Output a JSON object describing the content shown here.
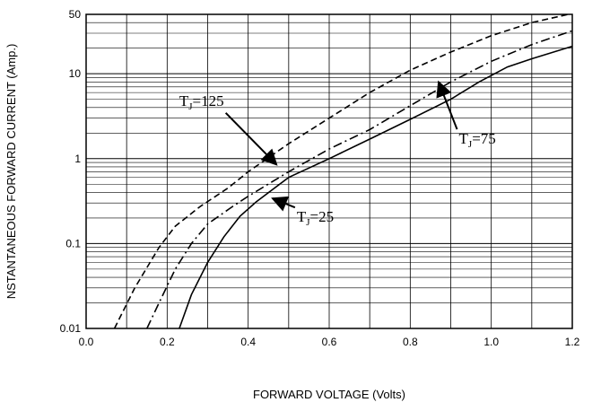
{
  "chart_data": {
    "type": "line",
    "xlabel": "FORWARD VOLTAGE (Volts)",
    "ylabel": "NSTANTANEOUS FORWARD CURRENT (Amp.)",
    "xlim": [
      0.0,
      1.2
    ],
    "ylim": [
      0.01,
      50
    ],
    "yscale": "log",
    "grid": true,
    "x_ticks": [
      "0.0",
      "0.2",
      "0.4",
      "0.6",
      "0.8",
      "1.0",
      "1.2"
    ],
    "y_ticks": [
      {
        "value": 0.01,
        "label": "0.01"
      },
      {
        "value": 0.1,
        "label": "0.1"
      },
      {
        "value": 1,
        "label": "1"
      },
      {
        "value": 10,
        "label": "10"
      },
      {
        "value": 50,
        "label": "50"
      }
    ],
    "series": [
      {
        "style": "dashed",
        "x": [
          0.07,
          0.12,
          0.18,
          0.22,
          0.28,
          0.35,
          0.4,
          0.5,
          0.6,
          0.7,
          0.8,
          0.9,
          1.0,
          1.1,
          1.19
        ],
        "y": [
          0.01,
          0.03,
          0.09,
          0.16,
          0.27,
          0.45,
          0.7,
          1.5,
          3.0,
          6.0,
          11.0,
          18.0,
          28.0,
          40.0,
          50.0
        ]
      },
      {
        "style": "dash-dot",
        "x": [
          0.15,
          0.18,
          0.22,
          0.26,
          0.3,
          0.36,
          0.4,
          0.5,
          0.6,
          0.7,
          0.8,
          0.9,
          1.0,
          1.1,
          1.2
        ],
        "y": [
          0.01,
          0.02,
          0.05,
          0.1,
          0.17,
          0.27,
          0.36,
          0.7,
          1.3,
          2.2,
          4.2,
          8.0,
          14.0,
          22.0,
          32.0
        ]
      },
      {
        "style": "solid",
        "x": [
          0.23,
          0.26,
          0.3,
          0.34,
          0.38,
          0.42,
          0.5,
          0.6,
          0.7,
          0.8,
          0.9,
          0.97,
          1.04,
          1.1,
          1.2
        ],
        "y": [
          0.01,
          0.025,
          0.06,
          0.12,
          0.21,
          0.31,
          0.6,
          1.0,
          1.7,
          2.9,
          5.0,
          8.0,
          12.0,
          15.0,
          21.0
        ]
      }
    ],
    "annotations": [
      {
        "main": "T",
        "sub": "J",
        "rest": "=125",
        "x": 0.23,
        "y": 4.2,
        "arrow_to_x": 0.47,
        "arrow_to_y": 0.85
      },
      {
        "main": "T",
        "sub": "J",
        "rest": "=75",
        "x": 0.92,
        "y": 1.5,
        "arrow_to_x": 0.87,
        "arrow_to_y": 8.0
      },
      {
        "main": "T",
        "sub": "J",
        "rest": "=25",
        "x": 0.52,
        "y": 0.18,
        "arrow_to_x": 0.46,
        "arrow_to_y": 0.34
      }
    ]
  }
}
